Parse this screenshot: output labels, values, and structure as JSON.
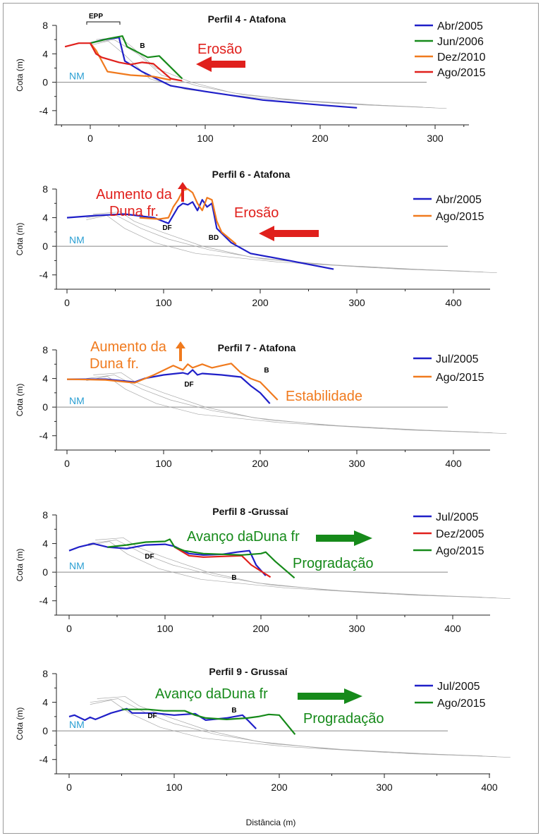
{
  "figure": {
    "xlabel": "Distância (m)",
    "ylabel": "Cota (m)",
    "nm_label": "NM"
  },
  "chart_data": [
    {
      "type": "line",
      "title": "Perfil 4 - Atafona",
      "ylabel": "Cota (m)",
      "xlim": [
        -25,
        330
      ],
      "ylim": [
        -6,
        8
      ],
      "xticks": [
        0,
        100,
        200,
        300
      ],
      "yticks": [
        -4,
        0,
        4,
        8
      ],
      "grid": false,
      "legend_position": "top-right",
      "series": [
        {
          "name": "Abr/2005",
          "color": "#1f1fc8",
          "x": [
            0,
            12,
            25,
            30,
            45,
            70,
            100,
            150,
            200,
            232
          ],
          "y": [
            5.5,
            6.0,
            6.3,
            3.0,
            1.5,
            -0.5,
            -1.3,
            -2.5,
            -3.2,
            -3.6
          ]
        },
        {
          "name": "Jun/2006",
          "color": "#168a1a",
          "x": [
            0,
            15,
            28,
            32,
            50,
            60,
            80
          ],
          "y": [
            5.5,
            6.1,
            6.5,
            5.0,
            3.5,
            3.7,
            0.5
          ]
        },
        {
          "name": "Dez/2010",
          "color": "#f07a1e",
          "x": [
            0,
            5,
            15,
            35,
            55,
            70
          ],
          "y": [
            5.5,
            4.5,
            1.5,
            1.0,
            0.8,
            0.3
          ]
        },
        {
          "name": "Ago/2015",
          "color": "#e0201c",
          "x": [
            -22,
            -10,
            0,
            5,
            10,
            25,
            35,
            45,
            55,
            70,
            80
          ],
          "y": [
            5.0,
            5.5,
            5.5,
            4.0,
            3.5,
            2.8,
            2.5,
            2.8,
            2.6,
            0.5,
            0.2
          ]
        }
      ],
      "annotations": [
        {
          "text": "Erosão",
          "color": "#e0201c"
        },
        {
          "text": "EPP",
          "color": "#000000"
        },
        {
          "text": "B",
          "color": "#000000"
        }
      ]
    },
    {
      "type": "line",
      "title": "Perfil 6 - Atafona",
      "ylabel": "Cota (m)",
      "xlim": [
        0,
        445
      ],
      "ylim": [
        -6,
        8
      ],
      "xticks": [
        0,
        100,
        200,
        300,
        400
      ],
      "yticks": [
        -4,
        0,
        4,
        8
      ],
      "grid": false,
      "legend_position": "top-right",
      "series": [
        {
          "name": "Abr/2005",
          "color": "#1f1fc8",
          "x": [
            0,
            30,
            60,
            90,
            105,
            115,
            120,
            125,
            130,
            135,
            140,
            145,
            150,
            155,
            170,
            190,
            230,
            276
          ],
          "y": [
            4.0,
            4.3,
            4.5,
            4.0,
            3.2,
            5.5,
            6.0,
            5.8,
            6.2,
            5.0,
            6.5,
            5.5,
            6.0,
            2.5,
            0.5,
            -1.0,
            -2.0,
            -3.2
          ]
        },
        {
          "name": "Ago/2015",
          "color": "#f07a1e",
          "x": [
            75,
            95,
            105,
            110,
            115,
            120,
            125,
            130,
            135,
            140,
            145,
            150,
            155,
            160,
            175
          ],
          "y": [
            4.0,
            3.8,
            4.0,
            5.5,
            6.5,
            7.8,
            8.0,
            7.5,
            6.0,
            5.0,
            6.8,
            6.5,
            3.5,
            2.0,
            0.3
          ]
        }
      ],
      "annotations": [
        {
          "text": "Aumento da",
          "color": "#e0201c"
        },
        {
          "text": "Duna fr.",
          "color": "#e0201c"
        },
        {
          "text": "Erosão",
          "color": "#e0201c"
        },
        {
          "text": "DF",
          "color": "#000000"
        },
        {
          "text": "BD",
          "color": "#000000"
        }
      ]
    },
    {
      "type": "line",
      "title": "Perfil 7 - Atafona",
      "ylabel": "Cota (m)",
      "xlim": [
        0,
        455
      ],
      "ylim": [
        -6,
        8
      ],
      "xticks": [
        0,
        100,
        200,
        300,
        400
      ],
      "yticks": [
        -4,
        0,
        4,
        8
      ],
      "grid": false,
      "legend_position": "top-right",
      "series": [
        {
          "name": "Jul/2005",
          "color": "#1f1fc8",
          "x": [
            0,
            40,
            70,
            80,
            100,
            120,
            125,
            130,
            135,
            140,
            160,
            180,
            190,
            200,
            210
          ],
          "y": [
            3.9,
            3.9,
            3.5,
            4.0,
            4.5,
            4.8,
            4.6,
            5.2,
            4.5,
            4.7,
            4.5,
            4.2,
            3.0,
            2.0,
            0.5
          ]
        },
        {
          "name": "Ago/2015",
          "color": "#f07a1e",
          "x": [
            0,
            40,
            70,
            90,
            110,
            120,
            125,
            130,
            140,
            150,
            160,
            170,
            180,
            190,
            200,
            218
          ],
          "y": [
            3.9,
            3.8,
            3.4,
            4.5,
            5.8,
            5.2,
            6.0,
            5.5,
            6.0,
            5.5,
            5.8,
            6.1,
            4.8,
            4.0,
            3.5,
            1.0
          ]
        }
      ],
      "annotations": [
        {
          "text": "Aumento da",
          "color": "#f07a1e"
        },
        {
          "text": "Duna fr.",
          "color": "#f07a1e"
        },
        {
          "text": "Estabilidade",
          "color": "#f07a1e"
        },
        {
          "text": "DF",
          "color": "#000000"
        },
        {
          "text": "B",
          "color": "#000000"
        }
      ]
    },
    {
      "type": "line",
      "title": "Perfil 8 -Grussaí",
      "ylabel": "Cota (m)",
      "xlim": [
        0,
        460
      ],
      "ylim": [
        -6,
        8
      ],
      "xticks": [
        0,
        100,
        200,
        300,
        400
      ],
      "yticks": [
        -4,
        0,
        4,
        8
      ],
      "grid": false,
      "legend_position": "top-right",
      "series": [
        {
          "name": "Jul/2005",
          "color": "#1f1fc8",
          "x": [
            0,
            10,
            25,
            40,
            60,
            80,
            100,
            110,
            125,
            140,
            160,
            175,
            188,
            195,
            205
          ],
          "y": [
            3.0,
            3.5,
            4.0,
            3.5,
            3.3,
            3.8,
            3.9,
            3.6,
            2.6,
            2.4,
            2.5,
            2.8,
            3.0,
            1.0,
            -0.5
          ]
        },
        {
          "name": "Dez/2005",
          "color": "#e0201c",
          "x": [
            110,
            125,
            140,
            160,
            180,
            190,
            210
          ],
          "y": [
            3.5,
            2.3,
            2.1,
            2.2,
            2.3,
            1.0,
            -0.7
          ]
        },
        {
          "name": "Ago/2015",
          "color": "#168a1a",
          "x": [
            40,
            60,
            80,
            100,
            105,
            110,
            120,
            140,
            160,
            180,
            200,
            205,
            215,
            235
          ],
          "y": [
            3.5,
            3.8,
            4.2,
            4.3,
            4.6,
            3.5,
            3.0,
            2.6,
            2.5,
            2.4,
            2.6,
            2.8,
            1.5,
            -0.8
          ]
        }
      ],
      "annotations": [
        {
          "text": "Avanço daDuna fr",
          "color": "#168a1a"
        },
        {
          "text": "Progradação",
          "color": "#168a1a"
        },
        {
          "text": "DF",
          "color": "#000000"
        },
        {
          "text": "B",
          "color": "#000000"
        }
      ]
    },
    {
      "type": "line",
      "title": "Perfil 9 - Grussaí",
      "ylabel": "Cota (m)",
      "xlim": [
        0,
        420
      ],
      "ylim": [
        -6,
        8
      ],
      "xticks": [
        0,
        100,
        200,
        300,
        400
      ],
      "yticks": [
        -4,
        0,
        4,
        8
      ],
      "grid": false,
      "legend_position": "top-right",
      "series": [
        {
          "name": "Jul/2005",
          "color": "#1f1fc8",
          "x": [
            0,
            5,
            15,
            20,
            25,
            30,
            40,
            50,
            55,
            60,
            80,
            100,
            120,
            130,
            150,
            165,
            170,
            178
          ],
          "y": [
            2.0,
            2.2,
            1.5,
            1.9,
            1.6,
            1.9,
            2.5,
            2.9,
            3.1,
            2.5,
            2.5,
            2.2,
            2.4,
            1.5,
            1.8,
            2.2,
            1.5,
            0.3
          ]
        },
        {
          "name": "Ago/2015",
          "color": "#168a1a",
          "x": [
            50,
            75,
            90,
            110,
            120,
            130,
            150,
            170,
            180,
            190,
            200,
            215
          ],
          "y": [
            3.0,
            3.0,
            2.8,
            2.8,
            2.2,
            1.8,
            1.6,
            1.8,
            2.0,
            2.3,
            2.2,
            -0.5
          ]
        }
      ],
      "annotations": [
        {
          "text": "Avanço daDuna fr",
          "color": "#168a1a"
        },
        {
          "text": "Progradação",
          "color": "#168a1a"
        },
        {
          "text": "DF",
          "color": "#000000"
        },
        {
          "text": "B",
          "color": "#000000"
        }
      ]
    }
  ]
}
